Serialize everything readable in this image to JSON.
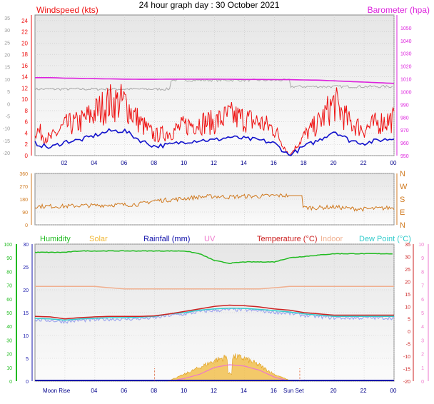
{
  "title": "24 hour graph day : 30 October 2021",
  "x_ticks": [
    "02",
    "04",
    "06",
    "08",
    "10",
    "12",
    "14",
    "16",
    "18",
    "20",
    "22",
    "00"
  ],
  "colors": {
    "windspeed": "#ee1111",
    "windavg": "#1111cc",
    "barometer": "#dd22dd",
    "gust_grey": "#aaaaaa",
    "winddir": "#d07a20",
    "humidity": "#22bb22",
    "solar": "#f0b838",
    "rainfall": "#1111aa",
    "uv": "#ee77cc",
    "temperature": "#cc2222",
    "indoor": "#f0b090",
    "dewpoint": "#33cccc",
    "chill": "#a0a8ee",
    "panel_bg": "#f0f0f0",
    "grid": "#c8c8c8"
  },
  "panels": {
    "wind": {
      "left_label": "Windspeed (kts)",
      "right_label": "Barometer (hpa)",
      "left_ticks_red": [
        "24",
        "22",
        "20",
        "18",
        "16",
        "14",
        "12",
        "10",
        "8",
        "6",
        "4",
        "2",
        "0"
      ],
      "left_ticks_grey": [
        "35",
        "30",
        "25",
        "20",
        "15",
        "10",
        "5",
        "0",
        "-5",
        "-10",
        "-15",
        "-20"
      ],
      "right_ticks": [
        "1050",
        "1040",
        "1030",
        "1020",
        "1010",
        "1000",
        "990",
        "980",
        "970",
        "960",
        "950"
      ]
    },
    "direction": {
      "left_ticks": [
        "360",
        "270",
        "180",
        "90",
        "0"
      ],
      "right_labels": [
        "N",
        "W",
        "S",
        "E",
        "N"
      ]
    },
    "climate": {
      "legend": {
        "humidity": "Humidity",
        "solar": "Solar",
        "rainfall": "Rainfall (mm)",
        "uv": "UV",
        "temperature": "Temperature (°C)",
        "indoor": "Indoor",
        "dewpoint": "Dew Point (°C)"
      },
      "humidity_ticks": [
        "100",
        "90",
        "80",
        "70",
        "60",
        "50",
        "40",
        "30",
        "20",
        "10",
        "0"
      ],
      "rain_ticks": [
        "30",
        "25",
        "20",
        "15",
        "10",
        "5",
        "0"
      ],
      "temp_ticks": [
        "35",
        "30",
        "25",
        "20",
        "15",
        "10",
        "5",
        "0",
        "-5",
        "-10",
        "-15",
        "-20"
      ],
      "uv_ticks": [
        "10",
        "9",
        "8",
        "7",
        "6",
        "5",
        "4",
        "3",
        "2",
        "1",
        "0"
      ],
      "moon_rise_label": "Moon Rise",
      "sun_set_label": "Sun Set"
    }
  },
  "chart_data": {
    "type": "line",
    "x_unit": "hour of day",
    "x": [
      0,
      1,
      2,
      3,
      4,
      5,
      6,
      7,
      8,
      9,
      10,
      11,
      12,
      13,
      14,
      15,
      16,
      17,
      18,
      19,
      20,
      21,
      22,
      23,
      24
    ],
    "series": [
      {
        "name": "Windspeed (kts)",
        "values": [
          4,
          2.5,
          4.5,
          5,
          6.5,
          8,
          8,
          5,
          3,
          3.5,
          4.5,
          5,
          5,
          6,
          5.5,
          5,
          4,
          0,
          3,
          5,
          8,
          5,
          4,
          5,
          5.5
        ]
      },
      {
        "name": "Barometer (hpa)",
        "values": [
          1011,
          1011,
          1010.6,
          1010.4,
          1010.2,
          1010,
          1009.8,
          1009.7,
          1009.7,
          1009.8,
          1009.8,
          1009.8,
          1009.8,
          1009.7,
          1009.6,
          1009.6,
          1009.5,
          1009.4,
          1009.2,
          1009,
          1008.5,
          1008,
          1007.5,
          1007,
          1006.5
        ]
      },
      {
        "name": "Wind Direction",
        "values": [
          130,
          130,
          130,
          135,
          135,
          140,
          140,
          145,
          170,
          175,
          185,
          195,
          200,
          195,
          200,
          200,
          205,
          205,
          120,
          120,
          125,
          115,
          110,
          115,
          120
        ]
      },
      {
        "name": "Humidity",
        "values": [
          94,
          94,
          94,
          95,
          95,
          95,
          95,
          95,
          95,
          95,
          95,
          93,
          88,
          86,
          87,
          87,
          87,
          90,
          91,
          92,
          93,
          93,
          93,
          93,
          93
        ]
      },
      {
        "name": "Temperature (°C)",
        "values": [
          6,
          5.8,
          5,
          5.5,
          5.8,
          6,
          6,
          6,
          6.2,
          7,
          8,
          9,
          10,
          10.5,
          10.3,
          9.8,
          9,
          8.5,
          7.5,
          7,
          6.5,
          6.5,
          6.5,
          6.5,
          6.5
        ]
      },
      {
        "name": "Dew Point (°C)",
        "values": [
          5.2,
          5,
          4.5,
          5,
          5.2,
          5.5,
          5.5,
          5.7,
          6,
          7,
          7.5,
          8.5,
          9,
          9.3,
          9.2,
          8.8,
          8.3,
          7.8,
          7,
          6.5,
          6,
          6,
          6,
          6,
          6
        ]
      },
      {
        "name": "Indoor",
        "values": [
          18,
          18,
          18,
          18,
          18,
          17.5,
          17,
          17,
          17,
          17,
          17,
          17,
          17,
          17,
          17,
          17,
          17.5,
          18,
          18,
          18,
          18,
          18,
          18,
          18,
          18
        ]
      },
      {
        "name": "Solar",
        "values": [
          0,
          0,
          0,
          0,
          0,
          0,
          0,
          0,
          0,
          0.2,
          1.5,
          3,
          4.5,
          5.5,
          5,
          3.5,
          1.5,
          0.2,
          0,
          0,
          0,
          0,
          0,
          0,
          0
        ]
      },
      {
        "name": "Rainfall (mm)",
        "values": [
          0,
          0,
          0,
          0,
          0,
          0,
          0,
          0,
          0,
          0,
          0,
          0,
          0,
          0,
          0,
          0,
          0,
          0,
          0,
          0,
          0,
          0,
          0,
          0,
          0
        ]
      },
      {
        "name": "UV",
        "values": [
          0,
          0,
          0,
          0,
          0,
          0,
          0,
          0,
          0,
          0,
          0.2,
          0.5,
          1,
          1.2,
          1.1,
          0.8,
          0.3,
          0,
          0,
          0,
          0,
          0,
          0,
          0,
          0
        ]
      }
    ],
    "ranges": {
      "windspeed": [
        0,
        25
      ],
      "barometer": [
        950,
        1060
      ],
      "direction": [
        0,
        360
      ],
      "humidity": [
        0,
        100
      ],
      "temperature": [
        -20,
        35
      ],
      "rainfall": [
        0,
        30
      ],
      "uv": [
        0,
        10
      ]
    },
    "grid": true
  }
}
